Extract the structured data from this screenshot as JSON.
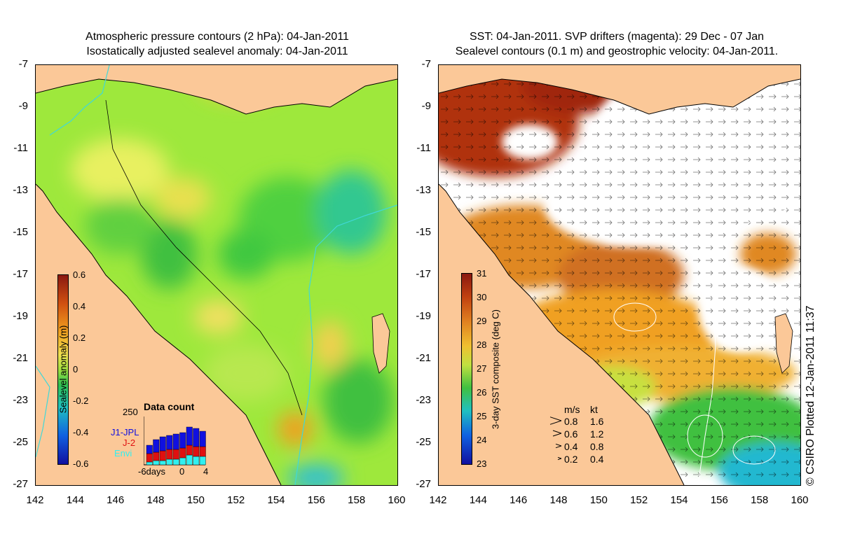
{
  "left_panel": {
    "title_line1": "Atmospheric pressure contours (2 hPa): 04-Jan-2011",
    "title_line2": "Isostatically adjusted sealevel anomaly: 04-Jan-2011",
    "colorbar": {
      "label": "Sealevel anomaly (m)",
      "ticks": [
        "0.6",
        "0.4",
        "0.2",
        "0",
        "-0.2",
        "-0.4",
        "-0.6"
      ]
    },
    "data_count": {
      "title": "Data count",
      "y_max_label": "250",
      "series": [
        "J1-JPL",
        "J-2",
        "Envi"
      ],
      "series_colors": [
        "#1010e0",
        "#e01010",
        "#30f0f0"
      ],
      "x_labels": [
        "-6days",
        "0",
        "4"
      ]
    }
  },
  "right_panel": {
    "title_line1": "SST: 04-Jan-2011. SVP drifters (magenta): 29 Dec - 07 Jan",
    "title_line2": "Sealevel contours (0.1 m) and geostrophic velocity: 04-Jan-2011.",
    "colorbar": {
      "label": "3-day SST composite (deg C)",
      "ticks": [
        "31",
        "30",
        "29",
        "28",
        "27",
        "26",
        "25",
        "24",
        "23"
      ]
    },
    "velocity_legend": {
      "header_ms": "m/s",
      "header_kt": "kt",
      "rows": [
        {
          "ms": "0.8",
          "kt": "1.6"
        },
        {
          "ms": "0.6",
          "kt": "1.2"
        },
        {
          "ms": "0.4",
          "kt": "0.8"
        },
        {
          "ms": "0.2",
          "kt": "0.4"
        }
      ]
    }
  },
  "axes": {
    "lat_labels": [
      "-7",
      "-9",
      "-11",
      "-13",
      "-15",
      "-17",
      "-19",
      "-21",
      "-23",
      "-25",
      "-27"
    ],
    "lon_labels": [
      "142",
      "144",
      "146",
      "148",
      "150",
      "152",
      "154",
      "156",
      "158",
      "160"
    ]
  },
  "copyright": "© CSIRO Plotted 12-Jan-2011 11:37",
  "colors": {
    "land": "#fbc898",
    "coastline": "#000000",
    "bathymetry": "#40d8d8"
  }
}
